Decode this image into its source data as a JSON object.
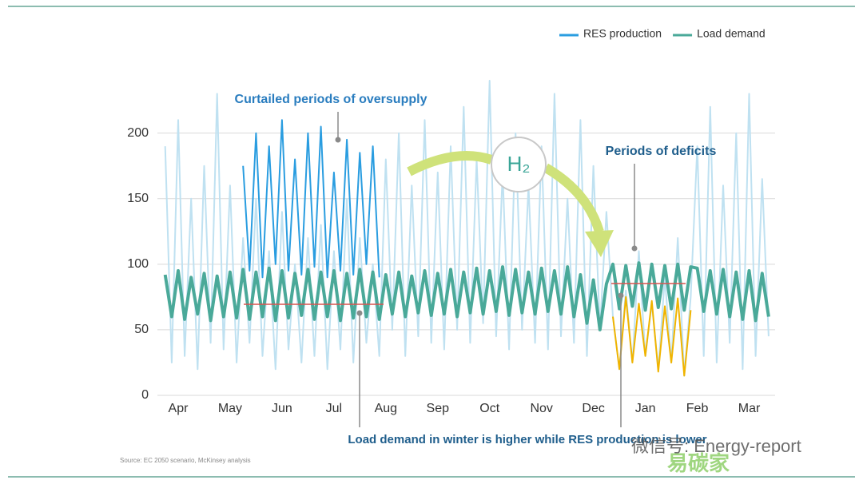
{
  "chart_data": {
    "type": "line",
    "title": "Curtailed periods of oversupply",
    "annotations": {
      "curtailed": "Curtailed periods of oversupply",
      "deficits": "Periods of deficits",
      "winter": "Load demand in winter is higher while RES production is lower",
      "h2": "H₂",
      "source": "Source: EC 2050 scenario, McKinsey analysis",
      "watermark": "微信号: Energy-report",
      "watermark2": "易碳家"
    },
    "x": [
      -0.25,
      -0.125,
      0,
      0.125,
      0.25,
      0.375,
      0.5,
      0.625,
      0.75,
      0.875,
      1,
      1.125,
      1.25,
      1.375,
      1.5,
      1.625,
      1.75,
      1.875,
      2,
      2.125,
      2.25,
      2.375,
      2.5,
      2.625,
      2.75,
      2.875,
      3,
      3.125,
      3.25,
      3.375,
      3.5,
      3.625,
      3.75,
      3.875,
      4,
      4.125,
      4.25,
      4.375,
      4.5,
      4.625,
      4.75,
      4.875,
      5,
      5.125,
      5.25,
      5.375,
      5.5,
      5.625,
      5.75,
      5.875,
      6,
      6.125,
      6.25,
      6.375,
      6.5,
      6.625,
      6.75,
      6.875,
      7,
      7.125,
      7.25,
      7.375,
      7.5,
      7.625,
      7.75,
      7.875,
      8,
      8.125,
      8.25,
      8.375,
      8.5,
      8.625,
      8.75,
      8.875,
      9,
      9.125,
      9.25,
      9.375,
      9.5,
      9.625,
      9.75,
      9.875,
      10,
      10.125,
      10.25,
      10.375,
      10.5,
      10.625,
      10.75,
      10.875,
      11,
      11.125,
      11.25,
      11.375
    ],
    "series": [
      {
        "name": "RES production",
        "color": "#bfe1f1",
        "legend_color": "#2a9de0",
        "width": 2,
        "values": [
          190,
          25,
          210,
          30,
          150,
          20,
          175,
          40,
          230,
          35,
          160,
          25,
          120,
          40,
          150,
          30,
          110,
          20,
          140,
          35,
          100,
          25,
          120,
          30,
          130,
          20,
          110,
          35,
          150,
          25,
          120,
          40,
          100,
          30,
          180,
          50,
          200,
          30,
          160,
          45,
          210,
          40,
          170,
          35,
          190,
          50,
          220,
          40,
          180,
          55,
          240,
          45,
          170,
          35,
          200,
          50,
          160,
          40,
          190,
          35,
          230,
          45,
          150,
          40,
          210,
          30,
          175,
          50,
          140,
          60,
          20,
          80,
          25,
          110,
          30,
          70,
          20,
          90,
          25,
          120,
          15,
          75,
          190,
          30,
          220,
          25,
          160,
          40,
          200,
          20,
          230,
          30,
          165,
          45
        ]
      },
      {
        "name": "Load demand",
        "color": "#4aa999",
        "width": 4,
        "values": [
          92,
          60,
          95,
          58,
          90,
          62,
          93,
          57,
          91,
          60,
          94,
          59,
          96,
          58,
          94,
          60,
          97,
          57,
          95,
          59,
          93,
          61,
          96,
          58,
          94,
          60,
          95,
          57,
          93,
          59,
          96,
          60,
          94,
          58,
          92,
          62,
          94,
          60,
          91,
          63,
          95,
          61,
          93,
          62,
          96,
          60,
          94,
          63,
          97,
          62,
          95,
          64,
          98,
          61,
          96,
          63,
          94,
          62,
          97,
          64,
          95,
          62,
          98,
          60,
          92,
          55,
          88,
          50,
          85,
          100,
          66,
          99,
          68,
          101,
          65,
          100,
          67,
          99,
          66,
          100,
          65,
          98,
          97,
          64,
          95,
          62,
          96,
          60,
          94,
          58,
          95,
          57,
          93,
          60
        ]
      },
      {
        "color": "#2a9de0",
        "width": 2,
        "values": [
          null,
          null,
          null,
          null,
          null,
          null,
          null,
          null,
          null,
          null,
          null,
          null,
          175,
          95,
          200,
          90,
          190,
          100,
          210,
          95,
          180,
          92,
          200,
          98,
          205,
          90,
          170,
          95,
          195,
          92,
          185,
          100,
          190,
          90,
          null,
          null,
          null,
          null,
          null,
          null,
          null,
          null,
          null,
          null,
          null,
          null,
          null,
          null,
          null,
          null,
          null,
          null,
          null,
          null,
          null,
          null,
          null,
          null,
          null,
          null,
          null,
          null,
          null,
          null,
          null,
          null,
          null,
          null,
          null,
          null,
          null,
          null,
          null,
          null,
          null,
          null,
          null,
          null,
          null,
          null,
          null,
          null,
          null,
          null,
          null,
          null,
          null,
          null,
          null,
          null,
          null,
          null,
          null,
          null
        ]
      },
      {
        "color": "#f0b400",
        "width": 2,
        "values": [
          null,
          null,
          null,
          null,
          null,
          null,
          null,
          null,
          null,
          null,
          null,
          null,
          null,
          null,
          null,
          null,
          null,
          null,
          null,
          null,
          null,
          null,
          null,
          null,
          null,
          null,
          null,
          null,
          null,
          null,
          null,
          null,
          null,
          null,
          null,
          null,
          null,
          null,
          null,
          null,
          null,
          null,
          null,
          null,
          null,
          null,
          null,
          null,
          null,
          null,
          null,
          null,
          null,
          null,
          null,
          null,
          null,
          null,
          null,
          null,
          null,
          null,
          null,
          null,
          null,
          null,
          null,
          null,
          null,
          60,
          20,
          75,
          25,
          70,
          30,
          72,
          18,
          68,
          25,
          74,
          15,
          65,
          null,
          null,
          null,
          null,
          null,
          null,
          null,
          null,
          null,
          null,
          null,
          null
        ]
      }
    ],
    "xlim": [
      -0.4,
      11.5
    ],
    "xticks": [
      {
        "value": 0,
        "label": "Apr"
      },
      {
        "value": 1,
        "label": "May"
      },
      {
        "value": 2,
        "label": "Jun"
      },
      {
        "value": 3,
        "label": "Jul"
      },
      {
        "value": 4,
        "label": "Aug"
      },
      {
        "value": 5,
        "label": "Sep"
      },
      {
        "value": 6,
        "label": "Oct"
      },
      {
        "value": 7,
        "label": "Nov"
      },
      {
        "value": 8,
        "label": "Dec"
      },
      {
        "value": 9,
        "label": "Jan"
      },
      {
        "value": 10,
        "label": "Feb"
      },
      {
        "value": 11,
        "label": "Mar"
      }
    ],
    "ylim": [
      0,
      240
    ],
    "yticks": [
      0,
      50,
      100,
      150,
      200
    ],
    "grid": true,
    "legend": "top-right"
  }
}
